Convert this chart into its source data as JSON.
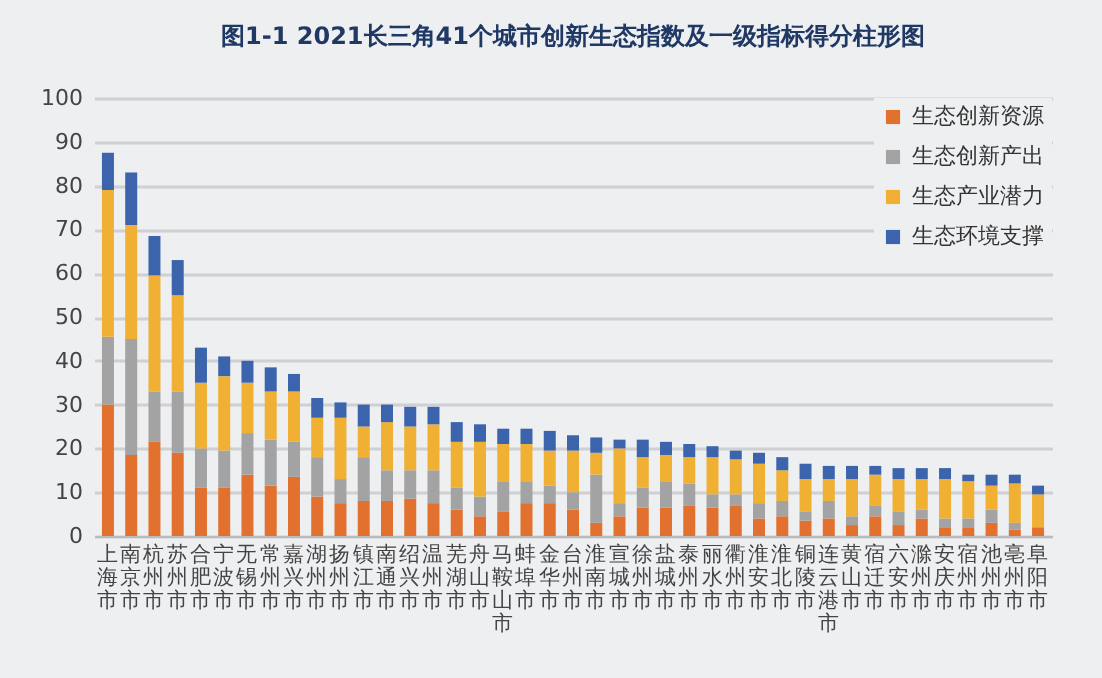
{
  "chart_data": {
    "type": "bar",
    "stacked": true,
    "title": "图1-1 2021长三角41个城市创新生态指数及一级指标得分柱形图",
    "categories": [
      "上海市",
      "南京市",
      "杭州市",
      "苏州市",
      "合肥市",
      "宁波市",
      "无锡市",
      "常州市",
      "嘉兴市",
      "湖州市",
      "扬州市",
      "镇江市",
      "南通市",
      "绍兴市",
      "温州市",
      "芜湖市",
      "舟山市",
      "马鞍山市",
      "蚌埠市",
      "金华市",
      "台州市",
      "淮南市",
      "宣城市",
      "徐州市",
      "盐城市",
      "泰州市",
      "丽水市",
      "衢州市",
      "淮安市",
      "淮北市",
      "铜陵市",
      "连云港市",
      "黄山市",
      "宿迁市",
      "六安市",
      "滁州市",
      "安庆市",
      "宿州市",
      "池州市",
      "亳州市",
      "阜阳市"
    ],
    "series": [
      {
        "name": "生态创新资源",
        "color": "#e2712f",
        "values": [
          30,
          18.5,
          21.5,
          19,
          11,
          11,
          14,
          11.5,
          13.5,
          9,
          7.5,
          8,
          8,
          8.5,
          7.5,
          6,
          4.5,
          5.5,
          7.5,
          7.5,
          6,
          3,
          4.5,
          6.5,
          6.5,
          7,
          6.5,
          7,
          4,
          4.5,
          3.5,
          4,
          2.5,
          4.5,
          2.5,
          4,
          2,
          2,
          3,
          1.5,
          2
        ]
      },
      {
        "name": "生态创新产出",
        "color": "#a3a3a3",
        "values": [
          15.5,
          26.5,
          11.5,
          14,
          9,
          8.5,
          9.5,
          10.5,
          8,
          9,
          5.5,
          10,
          7,
          6.5,
          7.5,
          5,
          4.5,
          7,
          5,
          4,
          4,
          11,
          3,
          4.5,
          6,
          5,
          3,
          2.5,
          3.5,
          3.5,
          2,
          4,
          2,
          2.5,
          3,
          2,
          2,
          2,
          3,
          1.5,
          null
        ]
      },
      {
        "name": "生态产业潜力",
        "color": "#efb034",
        "values": [
          33.5,
          26,
          26.5,
          22,
          15,
          17,
          11.5,
          11,
          11.5,
          9,
          14,
          7,
          11,
          10,
          10.5,
          10.5,
          12.5,
          8.5,
          8.5,
          8,
          9.5,
          5,
          12.5,
          7,
          6,
          6,
          8.5,
          8,
          9,
          7,
          7.5,
          5,
          8.5,
          7,
          7.5,
          7,
          9,
          8.5,
          5.5,
          9,
          7.5
        ]
      },
      {
        "name": "生态环境支撑",
        "color": "#3b64ad",
        "values": [
          8.5,
          12,
          9,
          8,
          8,
          4.5,
          5,
          5.5,
          4,
          4.5,
          3.5,
          5,
          4,
          4.5,
          4,
          4.5,
          4,
          3.5,
          3.5,
          4.5,
          3.5,
          3.5,
          2,
          4,
          3,
          3,
          2.5,
          2,
          2.5,
          3,
          3.5,
          3,
          3,
          2,
          2.5,
          2.5,
          2.5,
          1.5,
          2.5,
          2,
          2
        ]
      }
    ],
    "ylim": [
      0,
      100
    ],
    "yticks": [
      0,
      10,
      20,
      30,
      40,
      50,
      60,
      70,
      80,
      90,
      100
    ],
    "grid": "y",
    "legend": "top right"
  }
}
